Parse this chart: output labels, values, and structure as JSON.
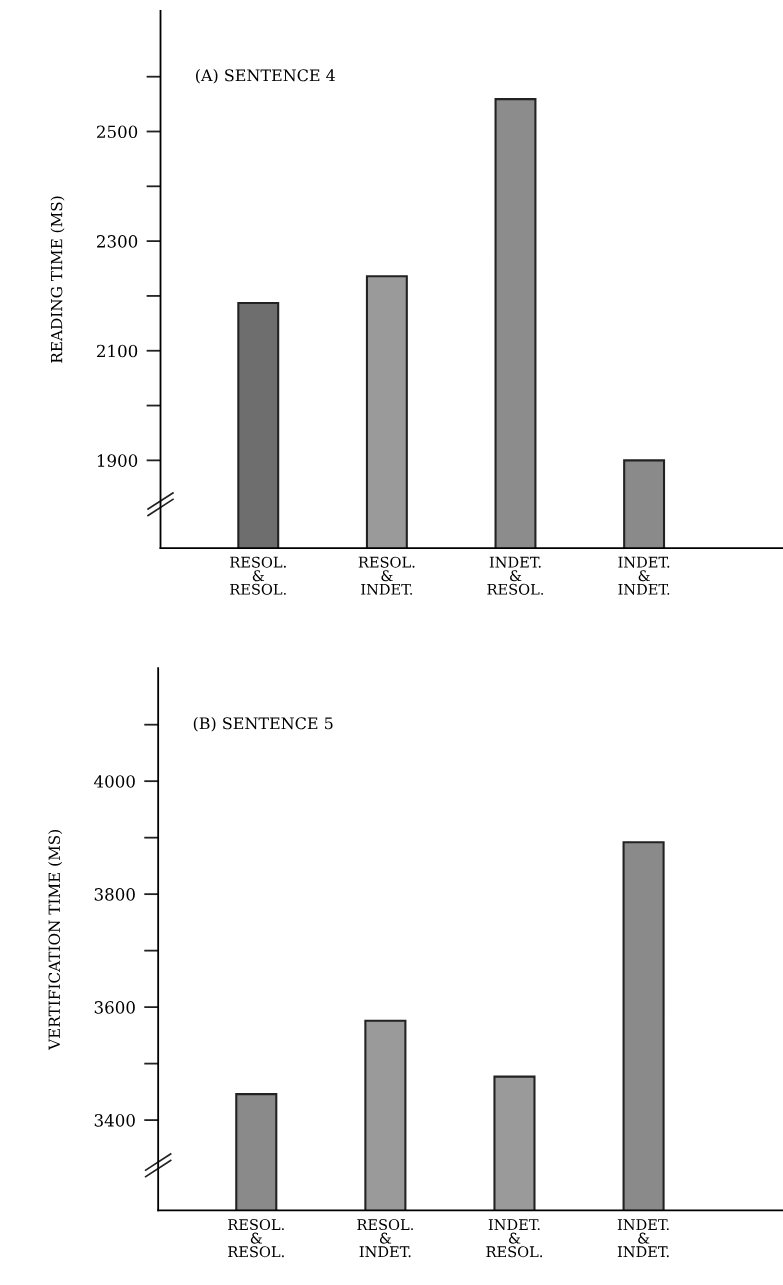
{
  "chart_data": [
    {
      "type": "bar",
      "title": "(A) SENTENCE 4",
      "ylabel": "READING TIME (MS)",
      "categories": [
        "RESOL.\n&\nRESOL.",
        "RESOL.\n&\nINDET.",
        "INDET.\n&\nRESOL.",
        "INDET.\n&\nINDET."
      ],
      "values": [
        2187,
        2236,
        2559,
        1900
      ],
      "colors": [
        "#6e6e6e",
        "#9a9a9a",
        "#8c8c8c",
        "#8a8a8a"
      ],
      "ylim": [
        1740,
        2720
      ],
      "yticks": [
        1900,
        {
          "value": 2000,
          "label": null
        },
        2100,
        {
          "value": 2200,
          "label": null
        },
        2300,
        {
          "value": 2400,
          "label": null
        },
        2500,
        {
          "value": 2600,
          "label": null
        }
      ],
      "grid": false,
      "legend": false
    },
    {
      "type": "bar",
      "title": "(B) SENTENCE 5",
      "ylabel": "VERTIFICATION TIME (MS)",
      "categories": [
        "RESOL.\n&\nRESOL.",
        "RESOL.\n&\nINDET.",
        "INDET.\n&\nRESOL.",
        "INDET.\n&\nINDET."
      ],
      "values": [
        3446,
        3576,
        3477,
        3892
      ],
      "colors": [
        "#8a8a8a",
        "#9a9a9a",
        "#9a9a9a",
        "#8a8a8a"
      ],
      "ylim": [
        3240,
        4200
      ],
      "yticks": [
        3400,
        {
          "value": 3500,
          "label": null
        },
        3600,
        {
          "value": 3700,
          "label": null
        },
        3800,
        {
          "value": 3900,
          "label": null
        },
        4000,
        {
          "value": 4100,
          "label": null
        }
      ],
      "grid": false,
      "legend": false
    }
  ]
}
